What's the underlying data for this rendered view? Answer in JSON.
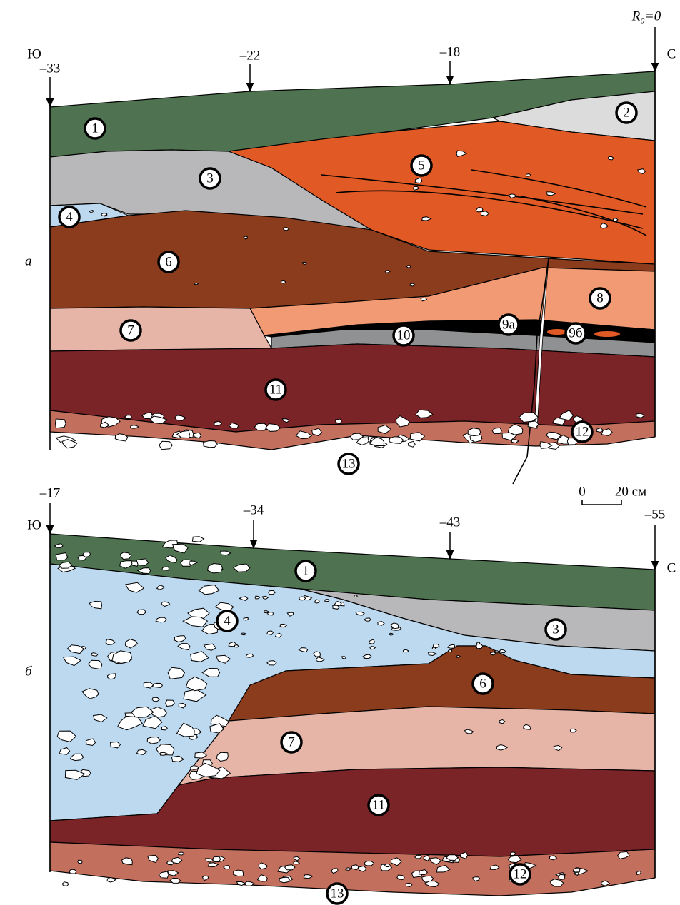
{
  "panel_a": {
    "letter": "а",
    "south": "Ю",
    "north": "С",
    "datum": "R₀=0",
    "markers": [
      "–33",
      "–22",
      "–18"
    ],
    "layers": [
      "1",
      "2",
      "3",
      "4",
      "5",
      "6",
      "7",
      "8",
      "9а",
      "9б",
      "10",
      "11",
      "12",
      "13"
    ]
  },
  "panel_b": {
    "letter": "б",
    "south": "Ю",
    "north": "С",
    "markers": [
      "–17",
      "–34",
      "–43",
      "–55"
    ],
    "layers": [
      "1",
      "3",
      "4",
      "6",
      "7",
      "11",
      "12",
      "13"
    ]
  },
  "scale": {
    "start": "0",
    "end": "20 см"
  }
}
